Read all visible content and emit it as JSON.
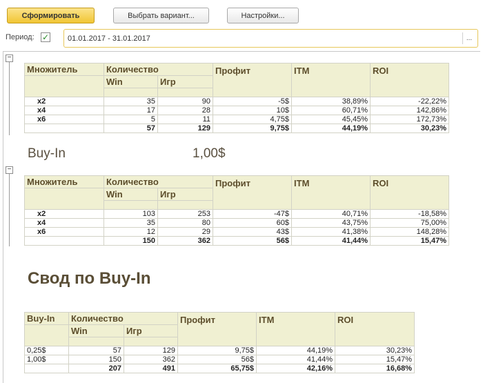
{
  "toolbar": {
    "generate_label": "Сформировать",
    "choose_variant_label": "Выбрать вариант...",
    "settings_label": "Настройки..."
  },
  "period": {
    "label": "Период:",
    "checked": true,
    "value": "01.01.2017 - 31.01.2017",
    "select_button": "..."
  },
  "table_headers": {
    "multiplier": "Множитель",
    "count": "Количество",
    "win": "Win",
    "games": "Игр",
    "profit": "Профит",
    "itm": "ITM",
    "roi": "ROI",
    "buyin": "Buy-In"
  },
  "group1": {
    "rows": [
      {
        "label": "x2",
        "win": "35",
        "games": "90",
        "profit": "-5$",
        "itm": "38,89%",
        "roi": "-22,22%"
      },
      {
        "label": "x4",
        "win": "17",
        "games": "28",
        "profit": "10$",
        "itm": "60,71%",
        "roi": "142,86%"
      },
      {
        "label": "x6",
        "win": "5",
        "games": "11",
        "profit": "4,75$",
        "itm": "45,45%",
        "roi": "172,73%"
      }
    ],
    "total": {
      "win": "57",
      "games": "129",
      "profit": "9,75$",
      "itm": "44,19%",
      "roi": "30,23%"
    }
  },
  "buyin_section": {
    "label": "Buy-In",
    "value": "1,00$"
  },
  "group2": {
    "rows": [
      {
        "label": "x2",
        "win": "103",
        "games": "253",
        "profit": "-47$",
        "itm": "40,71%",
        "roi": "-18,58%"
      },
      {
        "label": "x4",
        "win": "35",
        "games": "80",
        "profit": "60$",
        "itm": "43,75%",
        "roi": "75,00%"
      },
      {
        "label": "x6",
        "win": "12",
        "games": "29",
        "profit": "43$",
        "itm": "41,38%",
        "roi": "148,28%"
      }
    ],
    "total": {
      "win": "150",
      "games": "362",
      "profit": "56$",
      "itm": "41,44%",
      "roi": "15,47%"
    }
  },
  "summary": {
    "title": "Свод по Buy-In",
    "rows": [
      {
        "buyin": "0,25$",
        "win": "57",
        "games": "129",
        "profit": "9,75$",
        "itm": "44,19%",
        "roi": "30,23%"
      },
      {
        "buyin": "1,00$",
        "win": "150",
        "games": "362",
        "profit": "56$",
        "itm": "41,44%",
        "roi": "15,47%"
      }
    ],
    "total": {
      "win": "207",
      "games": "491",
      "profit": "65,75$",
      "itm": "42,16%",
      "roi": "16,68%"
    }
  },
  "icons": {
    "collapse": "minus-box-icon",
    "checkbox": "checkmark-icon"
  }
}
